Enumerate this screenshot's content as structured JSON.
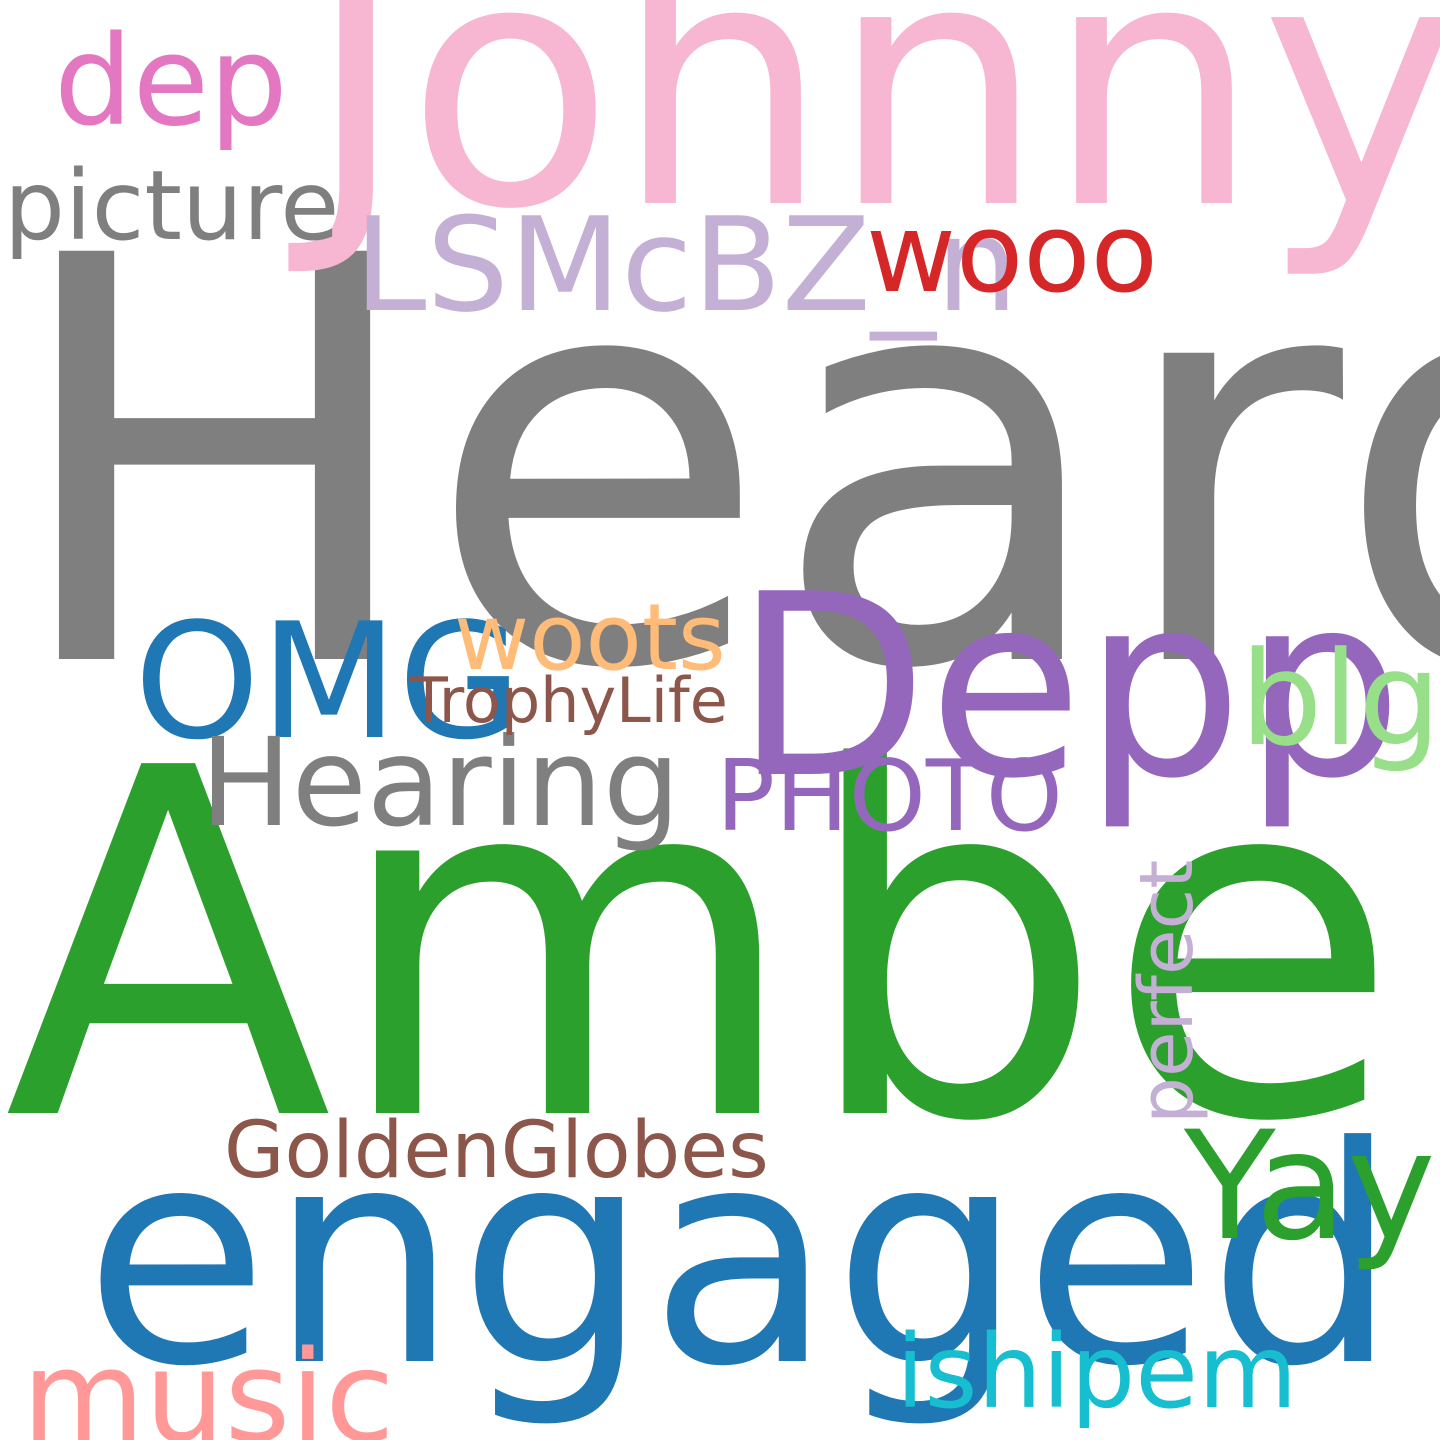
{
  "background": "#ffffff",
  "words": {
    "heard": {
      "text": "Heard",
      "color": "#7f7f7f"
    },
    "johnny": {
      "text": "Johnny",
      "color": "#f7b6d2"
    },
    "amber": {
      "text": "Amber",
      "color": "#2ca02c"
    },
    "engaged": {
      "text": "engaged",
      "color": "#1f77b4"
    },
    "depp": {
      "text": "Depp",
      "color": "#9467bd"
    },
    "omg": {
      "text": "OMG",
      "color": "#1f77b4"
    },
    "hearing": {
      "text": "Hearing",
      "color": "#7f7f7f"
    },
    "woots": {
      "text": "woots",
      "color": "#ffbb78"
    },
    "trophylife": {
      "text": "TrophyLife",
      "color": "#8c564b"
    },
    "blg": {
      "text": "blg",
      "color": "#98df8a"
    },
    "photo": {
      "text": "PHOTO",
      "color": "#9467bd"
    },
    "lsmcbz": {
      "text": "LSMcBZ_n",
      "color": "#c5b0d5"
    },
    "wooo": {
      "text": "wooo",
      "color": "#d62728"
    },
    "dep": {
      "text": "dep",
      "color": "#e377c2"
    },
    "picture": {
      "text": "picture",
      "color": "#7f7f7f"
    },
    "yay": {
      "text": "Yay",
      "color": "#2ca02c"
    },
    "goldenglobes": {
      "text": "GoldenGlobes",
      "color": "#8c564b"
    },
    "music": {
      "text": "music",
      "color": "#ff9896"
    },
    "ishipem": {
      "text": "ishipem",
      "color": "#17becf"
    },
    "perfect": {
      "text": "perfect",
      "color": "#c5b0d5"
    }
  }
}
